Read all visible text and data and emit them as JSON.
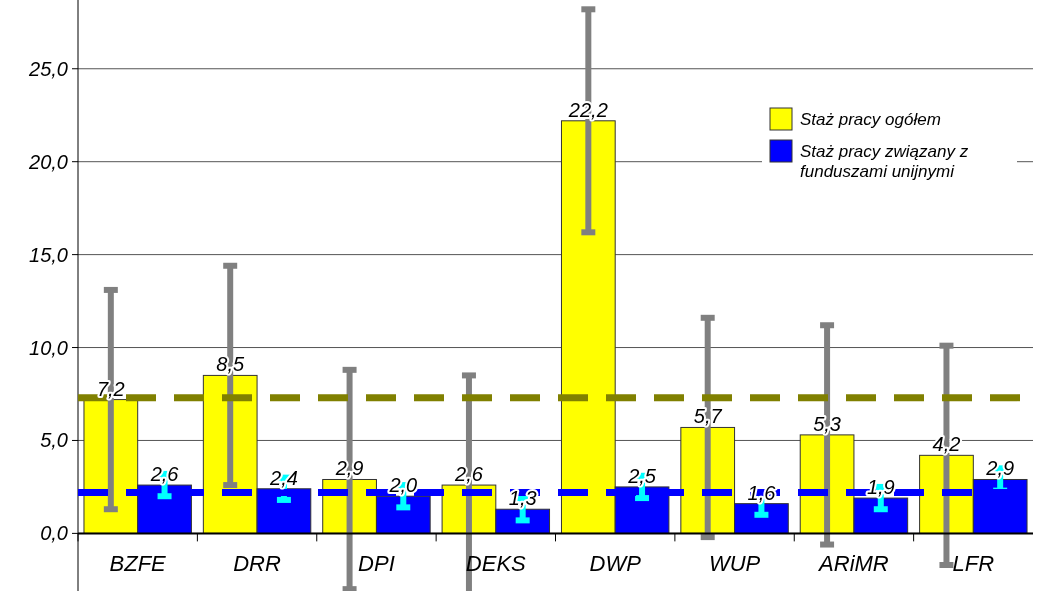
{
  "chart_data": {
    "type": "bar",
    "categories": [
      "BZFE",
      "DRR",
      "DPI",
      "DEKS",
      "DWP",
      "WUP",
      "ARiMR",
      "LFR"
    ],
    "series": [
      {
        "name": "Staż pracy ogółem",
        "color": "#ffff00",
        "values": [
          7.2,
          8.5,
          2.9,
          2.6,
          22.2,
          5.7,
          5.3,
          4.2
        ],
        "value_labels": [
          "7,2",
          "8,5",
          "2,9",
          "2,6",
          "22,2",
          "5,7",
          "5,3",
          "4,2"
        ],
        "errors": [
          5.9,
          5.9,
          5.9,
          5.9,
          6.0,
          5.9,
          5.9,
          5.9
        ]
      },
      {
        "name": "Staż pracy związany z funduszami unijnymi",
        "color": "#0000ff",
        "values": [
          2.6,
          2.4,
          2.0,
          1.3,
          2.5,
          1.6,
          1.9,
          2.9
        ],
        "value_labels": [
          "2,6",
          "2,4",
          "2,0",
          "1,3",
          "2,5",
          "1,6",
          "1,9",
          "2,9"
        ],
        "errors": [
          0.6,
          0.6,
          0.6,
          0.6,
          0.6,
          0.6,
          0.6,
          0.6
        ]
      }
    ],
    "ylim": [
      -3.1,
      28.7
    ],
    "yticks": [
      {
        "value": 0,
        "label": "0,0"
      },
      {
        "value": 5,
        "label": "5,0"
      },
      {
        "value": 10,
        "label": "10,0"
      },
      {
        "value": 15,
        "label": "15,0"
      },
      {
        "value": 20,
        "label": "20,0"
      },
      {
        "value": 25,
        "label": "25,0"
      }
    ],
    "ref_lines": [
      {
        "axis": "y",
        "value": 7.3,
        "color": "#808000",
        "line_style": "dashed"
      },
      {
        "axis": "y",
        "value": 2.2,
        "color": "#0000ff",
        "line_style": "dashed"
      }
    ],
    "grid": "y",
    "legend": "top right"
  }
}
